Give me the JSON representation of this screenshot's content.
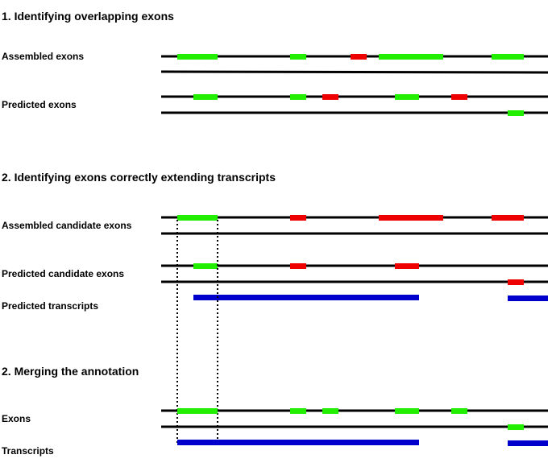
{
  "sections": [
    {
      "title": "1. Identifying overlapping exons",
      "rows": [
        {
          "label": "Assembled exons"
        },
        {
          "label": "Predicted exons"
        }
      ]
    },
    {
      "title": "2. Identifying exons correctly extending transcripts",
      "rows": [
        {
          "label": "Assembled candidate exons"
        },
        {
          "label": "Predicted candidate exons"
        },
        {
          "label": "Predicted transcripts"
        }
      ]
    },
    {
      "title": "2. Merging the annotation",
      "rows": [
        {
          "label": "Exons"
        },
        {
          "label": "Transcripts"
        }
      ]
    }
  ],
  "colors": {
    "line": "#000000",
    "matched_exon": "#22ee00",
    "unmatched_exon": "#ee0000",
    "transcript": "#0000cc"
  }
}
